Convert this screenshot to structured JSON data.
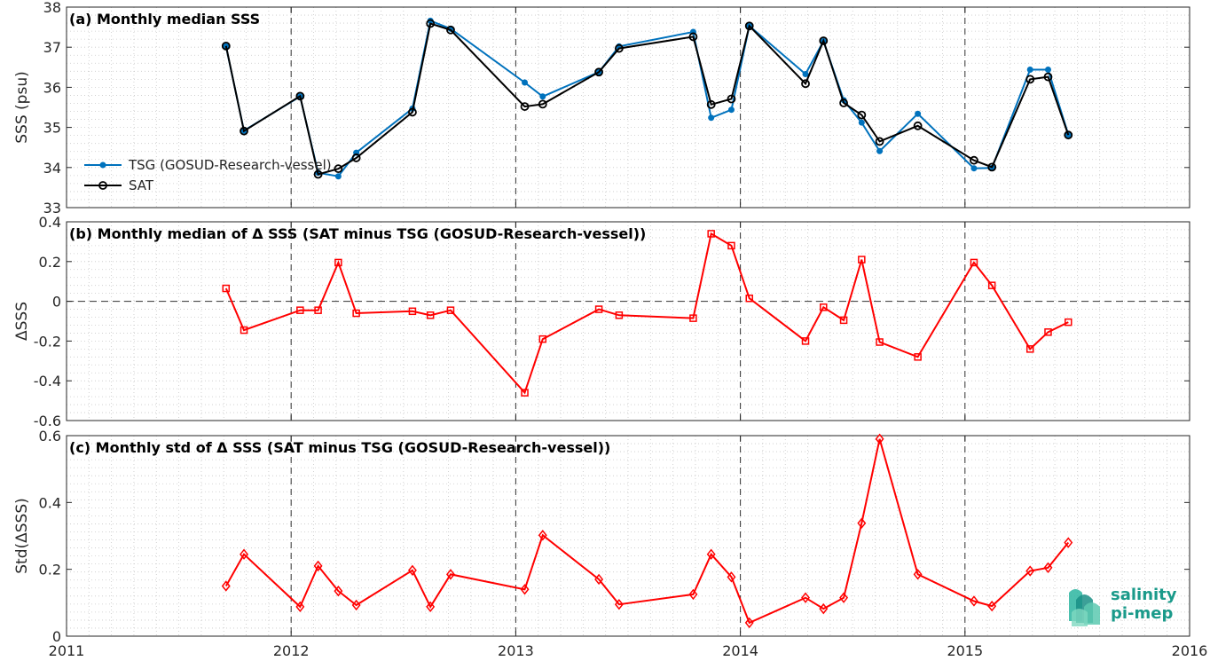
{
  "chart_data": [
    {
      "type": "line",
      "title": "(a) Monthly median SSS",
      "ylabel": "SSS (psu)",
      "xlim": [
        2011,
        2016
      ],
      "ylim": [
        33,
        38
      ],
      "yticks": [
        33,
        34,
        35,
        36,
        37,
        38
      ],
      "grid": true,
      "legend_position": "left",
      "series": [
        {
          "name": "TSG (GOSUD-Research-vessel)",
          "color": "#0072bd",
          "marker": "dot",
          "x": [
            2011.71,
            2011.79,
            2012.04,
            2012.12,
            2012.21,
            2012.29,
            2012.54,
            2012.62,
            2012.71,
            2013.04,
            2013.12,
            2013.37,
            2013.46,
            2013.79,
            2013.87,
            2013.96,
            2014.04,
            2014.29,
            2014.37,
            2014.46,
            2014.54,
            2014.62,
            2014.79,
            2015.04,
            2015.12,
            2015.29,
            2015.37,
            2015.46
          ],
          "y": [
            37.02,
            34.92,
            35.77,
            33.87,
            33.78,
            34.37,
            35.47,
            37.66,
            37.46,
            36.12,
            35.77,
            36.38,
            37.02,
            37.38,
            35.24,
            35.44,
            37.53,
            36.33,
            37.15,
            35.68,
            35.12,
            34.41,
            35.34,
            33.98,
            33.99,
            36.44,
            36.44,
            34.82
          ]
        },
        {
          "name": "SAT",
          "color": "#000000",
          "marker": "circle",
          "x": [
            2011.71,
            2011.79,
            2012.04,
            2012.12,
            2012.21,
            2012.29,
            2012.54,
            2012.62,
            2012.71,
            2013.04,
            2013.12,
            2013.37,
            2013.46,
            2013.79,
            2013.87,
            2013.96,
            2014.04,
            2014.29,
            2014.37,
            2014.46,
            2014.54,
            2014.62,
            2014.79,
            2015.04,
            2015.12,
            2015.29,
            2015.37,
            2015.46
          ],
          "y": [
            37.03,
            34.91,
            35.78,
            33.83,
            33.97,
            34.24,
            35.38,
            37.59,
            37.43,
            35.52,
            35.58,
            36.38,
            36.97,
            37.26,
            35.57,
            35.71,
            37.53,
            36.09,
            37.16,
            35.61,
            35.31,
            34.65,
            35.04,
            34.18,
            34.01,
            36.2,
            36.26,
            34.81
          ]
        }
      ]
    },
    {
      "type": "line",
      "title": "(b) Monthly median of Δ SSS (SAT minus TSG (GOSUD-Research-vessel))",
      "ylabel": "ΔSSS",
      "xlim": [
        2011,
        2016
      ],
      "ylim": [
        -0.6,
        0.4
      ],
      "yticks": [
        -0.6,
        -0.4,
        -0.2,
        0,
        0.2,
        0.4
      ],
      "ytick_labels": [
        "-0.6",
        "-0.4",
        "-0.2",
        "0",
        "0.2",
        "0.4"
      ],
      "grid": true,
      "zero_line": true,
      "series": [
        {
          "color": "#ff0000",
          "marker": "square",
          "x": [
            2011.71,
            2011.79,
            2012.04,
            2012.12,
            2012.21,
            2012.29,
            2012.54,
            2012.62,
            2012.71,
            2013.04,
            2013.12,
            2013.37,
            2013.46,
            2013.79,
            2013.87,
            2013.96,
            2014.04,
            2014.29,
            2014.37,
            2014.46,
            2014.54,
            2014.62,
            2014.79,
            2015.04,
            2015.12,
            2015.29,
            2015.37,
            2015.46
          ],
          "y": [
            0.065,
            -0.145,
            -0.045,
            -0.045,
            0.195,
            -0.06,
            -0.05,
            -0.07,
            -0.045,
            -0.46,
            -0.19,
            -0.04,
            -0.07,
            -0.085,
            0.34,
            0.28,
            0.015,
            -0.2,
            -0.03,
            -0.095,
            0.21,
            -0.205,
            -0.28,
            0.195,
            0.08,
            -0.24,
            -0.155,
            -0.105
          ]
        }
      ]
    },
    {
      "type": "line",
      "title": "(c) Monthly std of Δ SSS (SAT minus TSG (GOSUD-Research-vessel))",
      "ylabel": "Std(ΔSSS)",
      "xlabel": "",
      "xlim": [
        2011,
        2016
      ],
      "xticks": [
        2011,
        2012,
        2013,
        2014,
        2015,
        2016
      ],
      "ylim": [
        0,
        0.6
      ],
      "yticks": [
        0,
        0.2,
        0.4,
        0.6
      ],
      "ytick_labels": [
        "0",
        "0.2",
        "0.4",
        "0.6"
      ],
      "grid": true,
      "series": [
        {
          "color": "#ff0000",
          "marker": "diamond",
          "x": [
            2011.71,
            2011.79,
            2012.04,
            2012.12,
            2012.21,
            2012.29,
            2012.54,
            2012.62,
            2012.71,
            2013.04,
            2013.12,
            2013.37,
            2013.46,
            2013.79,
            2013.87,
            2013.96,
            2014.04,
            2014.29,
            2014.37,
            2014.46,
            2014.54,
            2014.62,
            2014.79,
            2015.04,
            2015.12,
            2015.29,
            2015.37,
            2015.46
          ],
          "y": [
            0.15,
            0.245,
            0.088,
            0.21,
            0.135,
            0.093,
            0.197,
            0.088,
            0.185,
            0.14,
            0.302,
            0.17,
            0.095,
            0.125,
            0.245,
            0.177,
            0.04,
            0.115,
            0.082,
            0.115,
            0.338,
            0.59,
            0.185,
            0.105,
            0.09,
            0.195,
            0.205,
            0.28
          ]
        }
      ]
    }
  ],
  "logo": {
    "line1": "salinity",
    "line2": "pi-mep"
  }
}
